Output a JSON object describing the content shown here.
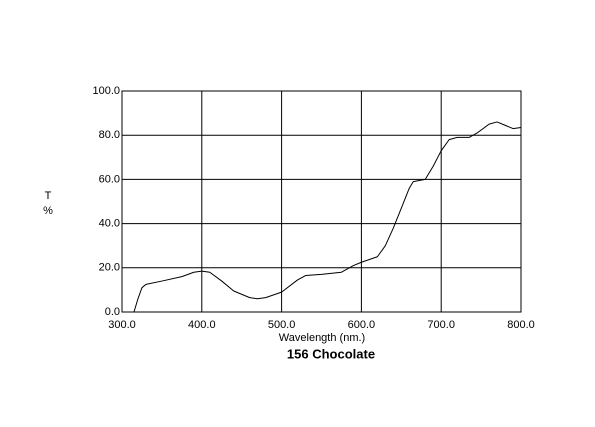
{
  "chart_data": {
    "type": "line",
    "title": "156 Chocolate",
    "x_label": "Wavelength (nm.)",
    "y_label": [
      "T",
      "%"
    ],
    "color": "#000000",
    "grid": true,
    "xlim": [
      300,
      800
    ],
    "ylim": [
      0,
      100
    ],
    "xticks": [
      {
        "value": 300,
        "label": "300.0"
      },
      {
        "value": 400,
        "label": "400.0"
      },
      {
        "value": 500,
        "label": "500.0"
      },
      {
        "value": 600,
        "label": "600.0"
      },
      {
        "value": 700,
        "label": "700.0"
      },
      {
        "value": 800,
        "label": "800.0"
      }
    ],
    "yticks": [
      {
        "value": 0,
        "label": "0.0"
      },
      {
        "value": 20,
        "label": "20.0"
      },
      {
        "value": 40,
        "label": "40.0"
      },
      {
        "value": 60,
        "label": "60.0"
      },
      {
        "value": 80,
        "label": "80.0"
      },
      {
        "value": 100,
        "label": "100.0"
      }
    ],
    "x": [
      315,
      320,
      325,
      330,
      350,
      375,
      390,
      400,
      410,
      425,
      440,
      460,
      470,
      480,
      500,
      520,
      530,
      550,
      575,
      590,
      600,
      620,
      630,
      640,
      650,
      660,
      665,
      680,
      690,
      700,
      710,
      720,
      735,
      745,
      760,
      770,
      780,
      790,
      800
    ],
    "values": [
      0,
      6,
      11,
      12.5,
      14,
      16,
      18,
      18.5,
      18,
      14,
      9.5,
      6.5,
      6,
      6.5,
      9,
      14.5,
      16.5,
      17,
      18,
      21,
      22.5,
      25,
      30,
      38,
      47,
      56,
      59,
      60,
      66,
      73,
      78,
      79,
      79,
      81,
      85,
      86,
      84.5,
      83,
      83.5
    ]
  }
}
